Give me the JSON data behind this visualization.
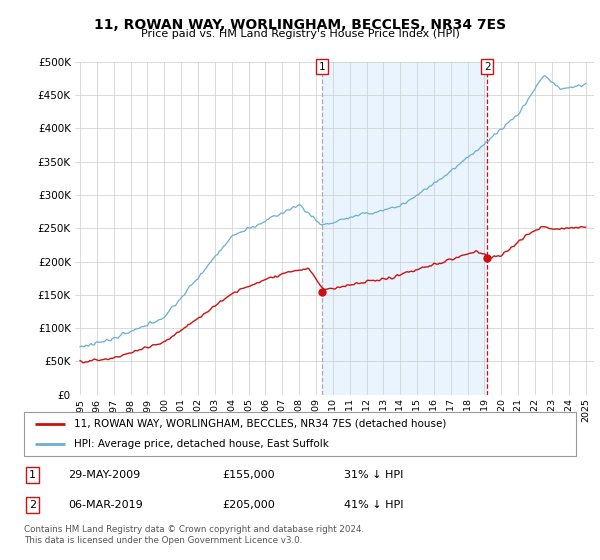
{
  "title": "11, ROWAN WAY, WORLINGHAM, BECCLES, NR34 7ES",
  "subtitle": "Price paid vs. HM Land Registry's House Price Index (HPI)",
  "legend_line1": "11, ROWAN WAY, WORLINGHAM, BECCLES, NR34 7ES (detached house)",
  "legend_line2": "HPI: Average price, detached house, East Suffolk",
  "annotation1_date": "29-MAY-2009",
  "annotation1_price": "£155,000",
  "annotation1_hpi": "31% ↓ HPI",
  "annotation2_date": "06-MAR-2019",
  "annotation2_price": "£205,000",
  "annotation2_hpi": "41% ↓ HPI",
  "footer": "Contains HM Land Registry data © Crown copyright and database right 2024.\nThis data is licensed under the Open Government Licence v3.0.",
  "hpi_color": "#6baed6",
  "price_color": "#cc1111",
  "vline1_color": "#aaaaaa",
  "vline2_color": "#cc1111",
  "shade_color": "#ddeeff",
  "annotation_box_color": "#cc1111",
  "background_color": "#ffffff",
  "grid_color": "#cccccc",
  "ylim": [
    0,
    500000
  ],
  "yticks": [
    0,
    50000,
    100000,
    150000,
    200000,
    250000,
    300000,
    350000,
    400000,
    450000,
    500000
  ],
  "xlim_start": 1994.7,
  "xlim_end": 2025.5,
  "t1_year": 2009.38,
  "t1_price": 155000,
  "t2_year": 2019.17,
  "t2_price": 205000
}
